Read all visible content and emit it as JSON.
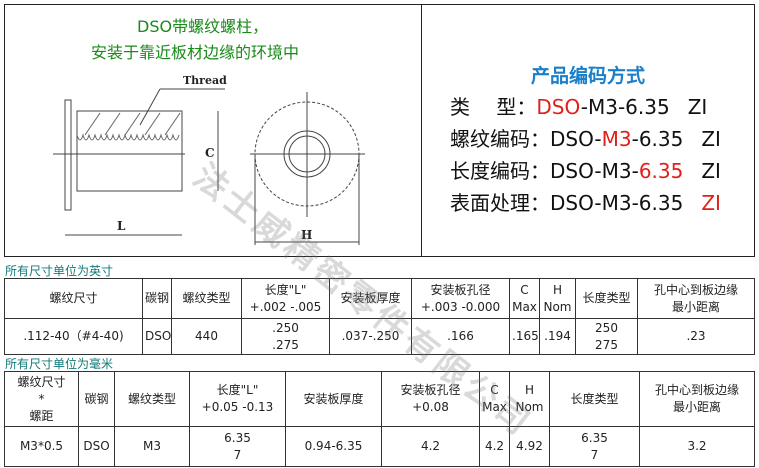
{
  "header": {
    "title_line1": "DSO带螺纹螺柱，",
    "title_line2": "安装于靠近板材边缘的环境中"
  },
  "drawing": {
    "thread_label": "Thread",
    "dim_c": "C",
    "dim_l": "L",
    "dim_h": "H"
  },
  "coding": {
    "title": "产品编码方式",
    "rows": [
      {
        "label": "类　 型：",
        "pre": "",
        "hl": "DSO",
        "post": "-M3-6.35",
        "suffix": "ZI",
        "suffix_red": false
      },
      {
        "label": "螺纹编码：",
        "pre": "DSO-",
        "hl": "M3",
        "post": "-6.35",
        "suffix": "ZI",
        "suffix_red": false
      },
      {
        "label": "长度编码：",
        "pre": "DSO-M3-",
        "hl": "6.35",
        "post": "",
        "suffix": "ZI",
        "suffix_red": false
      },
      {
        "label": "表面处理：",
        "pre": "DSO-M3-6.35",
        "hl": "",
        "post": "",
        "suffix": "ZI",
        "suffix_red": true
      }
    ]
  },
  "inch": {
    "caption": "所有尺寸单位为英寸",
    "headers": [
      [
        "螺纹尺寸"
      ],
      [
        "碳钢"
      ],
      [
        "螺纹类型"
      ],
      [
        "长度\"L\"",
        "+.002 -.005"
      ],
      [
        "安装板厚度"
      ],
      [
        "安装板孔径",
        "+.003 -0.000"
      ],
      [
        "C",
        "Max"
      ],
      [
        "H",
        "Nom"
      ],
      [
        "长度类型"
      ],
      [
        "孔中心到板边缘",
        "最小距离"
      ]
    ],
    "row": [
      [
        ".112-40（#4-40)"
      ],
      [
        "DSO"
      ],
      [
        "440"
      ],
      [
        ".250",
        ".275"
      ],
      [
        ".037-.250"
      ],
      [
        ".166"
      ],
      [
        ".165"
      ],
      [
        ".194"
      ],
      [
        "250",
        "275"
      ],
      [
        ".23"
      ]
    ]
  },
  "metric": {
    "caption": "所有尺寸单位为毫米",
    "headers": [
      [
        "螺纹尺寸",
        "*",
        "螺距"
      ],
      [
        "碳钢"
      ],
      [
        "螺纹类型"
      ],
      [
        "长度\"L\"",
        "+0.05 -0.13"
      ],
      [
        "安装板厚度"
      ],
      [
        "安装板孔径",
        "+0.08"
      ],
      [
        "C",
        "Max"
      ],
      [
        "H",
        "Nom"
      ],
      [
        "长度类型"
      ],
      [
        "孔中心到板边缘",
        "最小距离"
      ]
    ],
    "row": [
      [
        "M3*0.5"
      ],
      [
        "DSO"
      ],
      [
        "M3"
      ],
      [
        "6.35",
        "7"
      ],
      [
        "0.94-6.35"
      ],
      [
        "4.2"
      ],
      [
        "4.2"
      ],
      [
        "4.92"
      ],
      [
        "6.35",
        "7"
      ],
      [
        "3.2"
      ]
    ]
  },
  "watermark": "法士威精密零件有限公司",
  "colors": {
    "green": "#1a8a1a",
    "blue": "#1a7fc8",
    "red": "#e0201b",
    "teal": "#117a7a"
  }
}
